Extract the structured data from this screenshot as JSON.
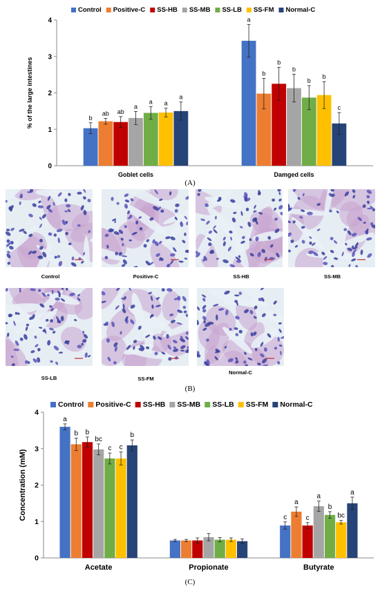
{
  "colors": {
    "Control": "#4472C4",
    "Positive-C": "#ED7D31",
    "SS-HB": "#C00000",
    "SS-MB": "#A5A5A5",
    "SS-LB": "#70AD47",
    "SS-FM": "#FFC000",
    "Normal-C": "#264478"
  },
  "panel_labels": {
    "a": "(A)",
    "b": "(B)",
    "c": "(C)"
  },
  "histology": {
    "tiles": [
      {
        "label": "Control"
      },
      {
        "label": "Positive-C"
      },
      {
        "label": "SS-HB"
      },
      {
        "label": "SS-MB"
      },
      {
        "label": "SS-LB"
      },
      {
        "label": "SS-FM"
      },
      {
        "label": "Normal-C"
      }
    ]
  },
  "chart_data": [
    {
      "type": "bar",
      "legend": [
        "Control",
        "Positive-C",
        "SS-HB",
        "SS-MB",
        "SS-LB",
        "SS-FM",
        "Normal-C"
      ],
      "legend_position": "top",
      "categories": [
        "Goblet cells",
        "Damged cells"
      ],
      "ylabel": "% of the large intestines",
      "ylim": [
        0,
        4
      ],
      "yticks": [
        "0",
        "1",
        "2",
        "3",
        "4"
      ],
      "grid": false,
      "series": [
        {
          "name": "Control",
          "values": [
            1.03,
            3.43
          ],
          "errors": [
            0.15,
            0.45
          ],
          "letters": [
            "b",
            "a"
          ]
        },
        {
          "name": "Positive-C",
          "values": [
            1.22,
            1.98
          ],
          "errors": [
            0.08,
            0.42
          ],
          "letters": [
            "ab",
            "b"
          ]
        },
        {
          "name": "SS-HB",
          "values": [
            1.2,
            2.25
          ],
          "errors": [
            0.15,
            0.45
          ],
          "letters": [
            "ab",
            "b"
          ]
        },
        {
          "name": "SS-MB",
          "values": [
            1.31,
            2.13
          ],
          "errors": [
            0.18,
            0.38
          ],
          "letters": [
            "a",
            "b"
          ]
        },
        {
          "name": "SS-LB",
          "values": [
            1.45,
            1.87
          ],
          "errors": [
            0.17,
            0.33
          ],
          "letters": [
            "a",
            "b"
          ]
        },
        {
          "name": "SS-FM",
          "values": [
            1.46,
            1.94
          ],
          "errors": [
            0.12,
            0.37
          ],
          "letters": [
            "a",
            "b"
          ]
        },
        {
          "name": "Normal-C",
          "values": [
            1.5,
            1.16
          ],
          "errors": [
            0.25,
            0.3
          ],
          "letters": [
            "a",
            "c"
          ]
        }
      ]
    },
    {
      "type": "bar",
      "legend": [
        "Control",
        "Positive-C",
        "SS-HB",
        "SS-MB",
        "SS-LB",
        "SS-FM",
        "Normal-C"
      ],
      "legend_position": "top",
      "categories": [
        "Acetate",
        "Propionate",
        "Butyrate"
      ],
      "ylabel": "Concentration (mM)",
      "ylim": [
        0,
        4
      ],
      "yticks": [
        "0",
        "1",
        "2",
        "3",
        "4"
      ],
      "grid": false,
      "series": [
        {
          "name": "Control",
          "values": [
            3.6,
            0.48,
            0.89
          ],
          "errors": [
            0.08,
            0.03,
            0.1
          ],
          "letters": [
            "a",
            "",
            "c"
          ]
        },
        {
          "name": "Positive-C",
          "values": [
            3.12,
            0.48,
            1.27
          ],
          "errors": [
            0.17,
            0.03,
            0.13
          ],
          "letters": [
            "b",
            "",
            "a"
          ]
        },
        {
          "name": "SS-HB",
          "values": [
            3.18,
            0.48,
            0.89
          ],
          "errors": [
            0.14,
            0.07,
            0.08
          ],
          "letters": [
            "b",
            "",
            "c"
          ]
        },
        {
          "name": "SS-MB",
          "values": [
            2.98,
            0.57,
            1.42
          ],
          "errors": [
            0.15,
            0.1,
            0.14
          ],
          "letters": [
            "bc",
            "",
            "a"
          ]
        },
        {
          "name": "SS-LB",
          "values": [
            2.73,
            0.5,
            1.18
          ],
          "errors": [
            0.15,
            0.06,
            0.09
          ],
          "letters": [
            "c",
            "",
            "b"
          ]
        },
        {
          "name": "SS-FM",
          "values": [
            2.73,
            0.5,
            0.98
          ],
          "errors": [
            0.18,
            0.05,
            0.05
          ],
          "letters": [
            "c",
            "",
            "bc"
          ]
        },
        {
          "name": "Normal-C",
          "values": [
            3.09,
            0.46,
            1.5
          ],
          "errors": [
            0.15,
            0.06,
            0.17
          ],
          "letters": [
            "b",
            "",
            "a"
          ]
        }
      ]
    }
  ]
}
